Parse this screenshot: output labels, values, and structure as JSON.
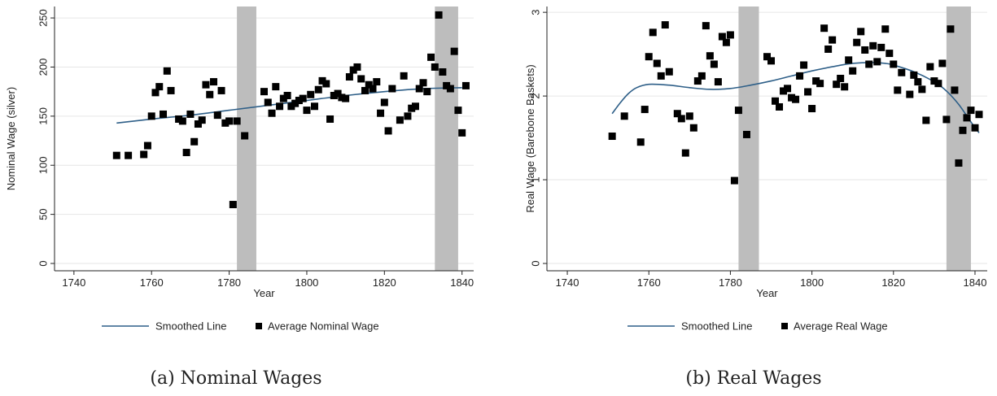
{
  "colors": {
    "line": "#2e5f88",
    "marker": "#000000",
    "shade": "#bdbdbd",
    "axis": "#222222",
    "grid": "#e6e6e6"
  },
  "captions": [
    "(a) Nominal Wages",
    "(b) Real Wages"
  ],
  "chart_data": [
    {
      "type": "scatter",
      "caption": "(a) Nominal Wages",
      "xlabel": "Year",
      "ylabel": "Nominal Wage (silver)",
      "xlim": [
        1735,
        1843
      ],
      "ylim": [
        0,
        260
      ],
      "xticks": [
        1740,
        1760,
        1780,
        1800,
        1820,
        1840
      ],
      "yticks": [
        0,
        50,
        100,
        150,
        200,
        250
      ],
      "grid": true,
      "legend_position": "bottom",
      "shaded_periods": [
        [
          1782,
          1787
        ],
        [
          1833,
          1839
        ]
      ],
      "series": [
        {
          "name": "Smoothed Line",
          "kind": "line",
          "x": [
            1751,
            1760,
            1770,
            1780,
            1790,
            1800,
            1810,
            1820,
            1830,
            1840
          ],
          "y": [
            143,
            147,
            151,
            156,
            161,
            166,
            171,
            175,
            178,
            179
          ]
        },
        {
          "name": "Average Nominal Wage",
          "kind": "scatter",
          "x": [
            1751,
            1754,
            1758,
            1759,
            1760,
            1761,
            1762,
            1763,
            1764,
            1765,
            1767,
            1768,
            1769,
            1770,
            1771,
            1772,
            1773,
            1774,
            1775,
            1776,
            1777,
            1778,
            1779,
            1780,
            1781,
            1782,
            1784,
            1789,
            1790,
            1791,
            1792,
            1793,
            1794,
            1795,
            1796,
            1797,
            1798,
            1799,
            1800,
            1801,
            1802,
            1803,
            1804,
            1805,
            1806,
            1807,
            1808,
            1809,
            1810,
            1811,
            1812,
            1813,
            1814,
            1815,
            1816,
            1817,
            1818,
            1819,
            1820,
            1821,
            1822,
            1824,
            1825,
            1826,
            1827,
            1828,
            1829,
            1830,
            1831,
            1832,
            1833,
            1834,
            1835,
            1836,
            1837,
            1838,
            1839,
            1840,
            1841
          ],
          "y": [
            110,
            110,
            111,
            120,
            150,
            174,
            180,
            152,
            196,
            176,
            147,
            145,
            113,
            152,
            124,
            142,
            146,
            182,
            172,
            185,
            151,
            176,
            143,
            145,
            60,
            145,
            130,
            175,
            164,
            153,
            180,
            160,
            168,
            171,
            160,
            163,
            166,
            168,
            156,
            172,
            160,
            177,
            186,
            183,
            147,
            171,
            173,
            169,
            168,
            190,
            197,
            200,
            188,
            176,
            182,
            178,
            185,
            153,
            164,
            135,
            178,
            146,
            191,
            150,
            158,
            160,
            178,
            184,
            175,
            210,
            200,
            253,
            195,
            181,
            178,
            216,
            156,
            133,
            181
          ]
        }
      ]
    },
    {
      "type": "scatter",
      "caption": "(b) Real Wages",
      "xlabel": "Year",
      "ylabel": "Real Wage (Barebone Baskets)",
      "xlim": [
        1735,
        1843
      ],
      "ylim": [
        0,
        3.05
      ],
      "xticks": [
        1740,
        1760,
        1780,
        1800,
        1820,
        1840
      ],
      "yticks": [
        0,
        1,
        2,
        3
      ],
      "grid": true,
      "legend_position": "bottom",
      "shaded_periods": [
        [
          1782,
          1787
        ],
        [
          1833,
          1839
        ]
      ],
      "series": [
        {
          "name": "Smoothed Line",
          "kind": "line",
          "x": [
            1751,
            1753,
            1755,
            1757,
            1760,
            1765,
            1770,
            1775,
            1780,
            1785,
            1790,
            1795,
            1800,
            1805,
            1810,
            1815,
            1818,
            1820,
            1825,
            1830,
            1833,
            1836,
            1839,
            1841
          ],
          "y": [
            1.79,
            1.92,
            2.03,
            2.1,
            2.14,
            2.13,
            2.1,
            2.08,
            2.09,
            2.13,
            2.18,
            2.24,
            2.3,
            2.35,
            2.39,
            2.4,
            2.39,
            2.37,
            2.29,
            2.17,
            2.06,
            1.9,
            1.69,
            1.56
          ]
        },
        {
          "name": "Average Real Wage",
          "kind": "scatter",
          "x": [
            1751,
            1754,
            1758,
            1759,
            1760,
            1761,
            1762,
            1763,
            1764,
            1765,
            1767,
            1768,
            1769,
            1770,
            1771,
            1772,
            1773,
            1774,
            1775,
            1776,
            1777,
            1778,
            1779,
            1780,
            1781,
            1782,
            1784,
            1789,
            1790,
            1791,
            1792,
            1793,
            1794,
            1795,
            1796,
            1797,
            1798,
            1799,
            1800,
            1801,
            1802,
            1803,
            1804,
            1805,
            1806,
            1807,
            1808,
            1809,
            1810,
            1811,
            1812,
            1813,
            1814,
            1815,
            1816,
            1817,
            1818,
            1819,
            1820,
            1821,
            1822,
            1824,
            1825,
            1826,
            1827,
            1828,
            1829,
            1830,
            1831,
            1832,
            1833,
            1834,
            1835,
            1836,
            1837,
            1838,
            1839,
            1840,
            1841
          ],
          "y": [
            1.52,
            1.76,
            1.45,
            1.84,
            2.47,
            2.76,
            2.39,
            2.24,
            2.85,
            2.29,
            1.79,
            1.73,
            1.32,
            1.76,
            1.62,
            2.18,
            2.24,
            2.84,
            2.48,
            2.38,
            2.17,
            2.71,
            2.64,
            2.73,
            0.99,
            1.83,
            1.54,
            2.47,
            2.42,
            1.94,
            1.87,
            2.06,
            2.09,
            1.98,
            1.96,
            2.24,
            2.37,
            2.05,
            1.85,
            2.18,
            2.15,
            2.81,
            2.56,
            2.67,
            2.14,
            2.21,
            2.11,
            2.43,
            2.3,
            2.64,
            2.77,
            2.55,
            2.38,
            2.6,
            2.41,
            2.58,
            2.8,
            2.51,
            2.38,
            2.07,
            2.28,
            2.02,
            2.25,
            2.17,
            2.08,
            1.71,
            2.35,
            2.18,
            2.15,
            2.39,
            1.72,
            2.8,
            2.07,
            1.2,
            1.59,
            1.74,
            1.83,
            1.62,
            1.78
          ]
        }
      ]
    }
  ]
}
